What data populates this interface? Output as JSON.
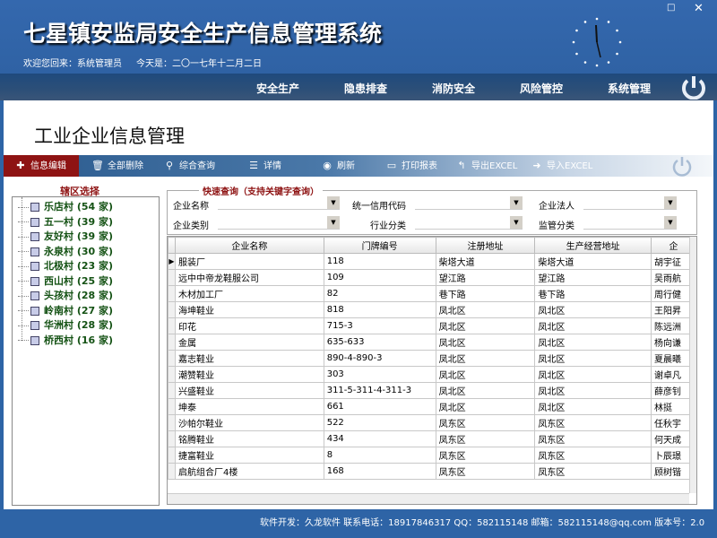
{
  "header": {
    "title": "七星镇安监局安全生产信息管理系统",
    "welcome": "欢迎您回来：系统管理员",
    "today": "今天是：二〇一七年十二月二日"
  },
  "nav": [
    "安全生产",
    "隐患排查",
    "消防安全",
    "风险管控",
    "系统管理"
  ],
  "page_title": "工业企业信息管理",
  "toolbar": [
    {
      "label": "信息编辑",
      "icon": "plus-icon"
    },
    {
      "label": "全部删除",
      "icon": "trash-icon"
    },
    {
      "label": "综合查询",
      "icon": "search-icon"
    },
    {
      "label": "详情",
      "icon": "list-icon"
    },
    {
      "label": "刷新",
      "icon": "refresh-icon"
    },
    {
      "label": "打印报表",
      "icon": "print-icon"
    },
    {
      "label": "导出EXCEL",
      "icon": "export-icon"
    },
    {
      "label": "导入EXCEL",
      "icon": "import-icon"
    }
  ],
  "district": {
    "label": "辖区选择",
    "items": [
      "乐店村 (54 家)",
      "五一村 (39 家)",
      "友好村 (39 家)",
      "永泉村 (30 家)",
      "北极村 (23 家)",
      "西山村 (25 家)",
      "头孩村 (28 家)",
      "岭南村 (27 家)",
      "华洲村 (28 家)",
      "桥西村 (16 家)"
    ]
  },
  "quick": {
    "label": "快速查询（支持关键字查询）",
    "fields": [
      "企业名称",
      "统一信用代码",
      "企业法人",
      "企业类别",
      "行业分类",
      "监管分类"
    ]
  },
  "grid": {
    "columns": [
      "企业名称",
      "门牌编号",
      "注册地址",
      "生产经营地址",
      "企"
    ],
    "rows": [
      [
        "服装厂",
        "118",
        "柴塔大道",
        "柴塔大道",
        "胡宇征"
      ],
      [
        "远中中帝龙鞋服公司",
        "109",
        "望江路",
        "望江路",
        "吴雨航"
      ],
      [
        "木材加工厂",
        "82",
        "巷下路",
        "巷下路",
        "周行健"
      ],
      [
        "海坤鞋业",
        "818",
        "凤北区",
        "凤北区",
        "王阳昇"
      ],
      [
        "印花",
        "715-3",
        "凤北区",
        "凤北区",
        "陈远洲"
      ],
      [
        "金属",
        "635-633",
        "凤北区",
        "凤北区",
        "杨向谦"
      ],
      [
        "嘉志鞋业",
        "890-4-890-3",
        "凤北区",
        "凤北区",
        "夏晨曦"
      ],
      [
        "潮赞鞋业",
        "303",
        "凤北区",
        "凤北区",
        "谢卓凡"
      ],
      [
        "兴盛鞋业",
        "311-5-311-4-311-3",
        "凤北区",
        "凤北区",
        "薛彦钊"
      ],
      [
        "坤泰",
        "661",
        "凤北区",
        "凤北区",
        "林挺"
      ],
      [
        "沙帕尔鞋业",
        "522",
        "凤东区",
        "凤东区",
        "任秋宇"
      ],
      [
        "铭腾鞋业",
        "434",
        "凤东区",
        "凤东区",
        "何天成"
      ],
      [
        "捷富鞋业",
        "8",
        "凤东区",
        "凤东区",
        "卜辰璟"
      ],
      [
        "启航组合厂4楼",
        "168",
        "凤东区",
        "凤东区",
        "顾树锴"
      ]
    ]
  },
  "footer": "软件开发：久龙软件   联系电话：18917846317  QQ：582115148 邮箱：582115148@qq.com   版本号：2.0"
}
